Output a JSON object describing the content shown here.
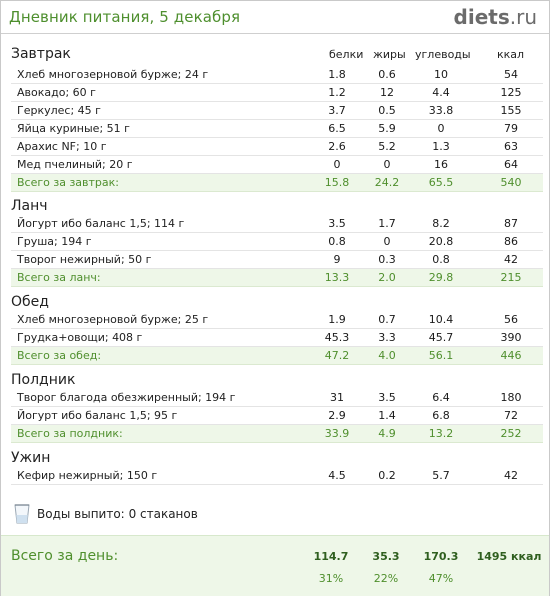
{
  "header": {
    "title": "Дневник питания, 5 декабря",
    "brand": "diets",
    "brand_dot": ".",
    "brand_tld": "ru"
  },
  "columns": {
    "protein": "белки",
    "fat": "жиры",
    "carbs": "углеводы",
    "kcal": "ккал"
  },
  "meals": [
    {
      "title": "Завтрак",
      "items": [
        {
          "name": "Хлеб многозерновой бурже; 24 г",
          "protein": "1.8",
          "fat": "0.6",
          "carbs": "10",
          "kcal": "54"
        },
        {
          "name": "Авокадо; 60 г",
          "protein": "1.2",
          "fat": "12",
          "carbs": "4.4",
          "kcal": "125"
        },
        {
          "name": "Геркулес; 45 г",
          "protein": "3.7",
          "fat": "0.5",
          "carbs": "33.8",
          "kcal": "155"
        },
        {
          "name": "Яйца куриные; 51 г",
          "protein": "6.5",
          "fat": "5.9",
          "carbs": "0",
          "kcal": "79"
        },
        {
          "name": "Арахис NF; 10 г",
          "protein": "2.6",
          "fat": "5.2",
          "carbs": "1.3",
          "kcal": "63"
        },
        {
          "name": "Мед пчелиный; 20 г",
          "protein": "0",
          "fat": "0",
          "carbs": "16",
          "kcal": "64"
        }
      ],
      "total": {
        "name": "Всего за завтрак:",
        "protein": "15.8",
        "fat": "24.2",
        "carbs": "65.5",
        "kcal": "540"
      }
    },
    {
      "title": "Ланч",
      "items": [
        {
          "name": "Йогурт ибо баланс 1,5; 114 г",
          "protein": "3.5",
          "fat": "1.7",
          "carbs": "8.2",
          "kcal": "87"
        },
        {
          "name": "Груша; 194 г",
          "protein": "0.8",
          "fat": "0",
          "carbs": "20.8",
          "kcal": "86"
        },
        {
          "name": "Творог нежирный; 50 г",
          "protein": "9",
          "fat": "0.3",
          "carbs": "0.8",
          "kcal": "42"
        }
      ],
      "total": {
        "name": "Всего за ланч:",
        "protein": "13.3",
        "fat": "2.0",
        "carbs": "29.8",
        "kcal": "215"
      }
    },
    {
      "title": "Обед",
      "items": [
        {
          "name": "Хлеб многозерновой бурже; 25 г",
          "protein": "1.9",
          "fat": "0.7",
          "carbs": "10.4",
          "kcal": "56"
        },
        {
          "name": "Грудка+овощи; 408 г",
          "protein": "45.3",
          "fat": "3.3",
          "carbs": "45.7",
          "kcal": "390"
        }
      ],
      "total": {
        "name": "Всего за обед:",
        "protein": "47.2",
        "fat": "4.0",
        "carbs": "56.1",
        "kcal": "446"
      }
    },
    {
      "title": "Полдник",
      "items": [
        {
          "name": "Творог благода обезжиренный; 194 г",
          "protein": "31",
          "fat": "3.5",
          "carbs": "6.4",
          "kcal": "180"
        },
        {
          "name": "Йогурт ибо баланс 1,5; 95 г",
          "protein": "2.9",
          "fat": "1.4",
          "carbs": "6.8",
          "kcal": "72"
        }
      ],
      "total": {
        "name": "Всего за полдник:",
        "protein": "33.9",
        "fat": "4.9",
        "carbs": "13.2",
        "kcal": "252"
      }
    },
    {
      "title": "Ужин",
      "items": [
        {
          "name": "Кефир нежирный; 150 г",
          "protein": "4.5",
          "fat": "0.2",
          "carbs": "5.7",
          "kcal": "42"
        }
      ],
      "total": null
    }
  ],
  "water": {
    "icon": "glass-icon",
    "label": "Воды выпито:",
    "value": "0 стаканов"
  },
  "day_total": {
    "label": "Всего за день:",
    "protein": "114.7",
    "fat": "35.3",
    "carbs": "170.3",
    "kcal": "1495 ккал",
    "protein_pct": "31%",
    "fat_pct": "22%",
    "carbs_pct": "47%"
  }
}
